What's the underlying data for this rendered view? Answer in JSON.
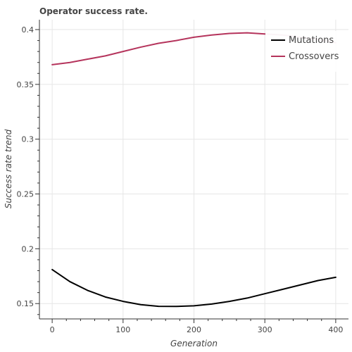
{
  "chart_data": {
    "type": "line",
    "title": "Operator success rate.",
    "xlabel": "Generation",
    "ylabel": "Success rate trend",
    "xlim": [
      -18,
      418
    ],
    "ylim": [
      0.136,
      0.409
    ],
    "xticks": [
      0,
      100,
      200,
      300,
      400
    ],
    "yticks": [
      0.15,
      0.2,
      0.25,
      0.3,
      0.35,
      0.4
    ],
    "ytick_labels": [
      "0.15",
      "0.2",
      "0.25",
      "0.3",
      "0.35",
      "0.4"
    ],
    "grid": true,
    "legend_position": "top-right",
    "series": [
      {
        "name": "Mutations",
        "color": "#000000",
        "x": [
          0,
          25,
          50,
          75,
          100,
          125,
          150,
          175,
          200,
          225,
          250,
          275,
          300,
          325,
          350,
          375,
          400
        ],
        "y": [
          0.181,
          0.17,
          0.162,
          0.156,
          0.152,
          0.149,
          0.1475,
          0.1474,
          0.148,
          0.1496,
          0.152,
          0.155,
          0.159,
          0.163,
          0.167,
          0.171,
          0.174
        ]
      },
      {
        "name": "Crossovers",
        "color": "#b5345c",
        "x": [
          0,
          25,
          50,
          75,
          100,
          125,
          150,
          175,
          200,
          225,
          250,
          275,
          300,
          325,
          350,
          375,
          400
        ],
        "y": [
          0.368,
          0.37,
          0.373,
          0.376,
          0.38,
          0.384,
          0.3875,
          0.39,
          0.393,
          0.395,
          0.3965,
          0.397,
          0.396,
          0.395,
          0.393,
          0.391,
          0.388
        ]
      }
    ]
  }
}
